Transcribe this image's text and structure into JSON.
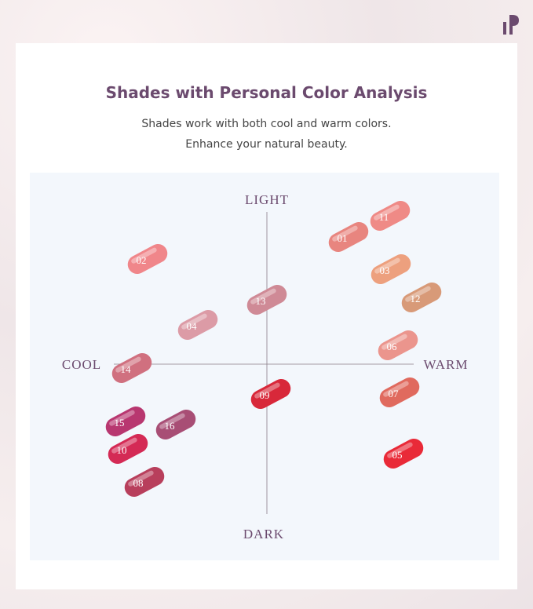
{
  "header": {
    "title": "Shades with Personal Color Analysis",
    "subtitle_lines": [
      "Shades work with both cool and warm colors.",
      "Enhance your natural beauty."
    ]
  },
  "map": {
    "axes": {
      "top": "LIGHT",
      "bottom": "DARK",
      "left": "COOL",
      "right": "WARM"
    },
    "swatches": [
      "01",
      "11",
      "02",
      "03",
      "12",
      "13",
      "04",
      "06",
      "14",
      "09",
      "07",
      "15",
      "16",
      "10",
      "05",
      "08"
    ]
  }
}
